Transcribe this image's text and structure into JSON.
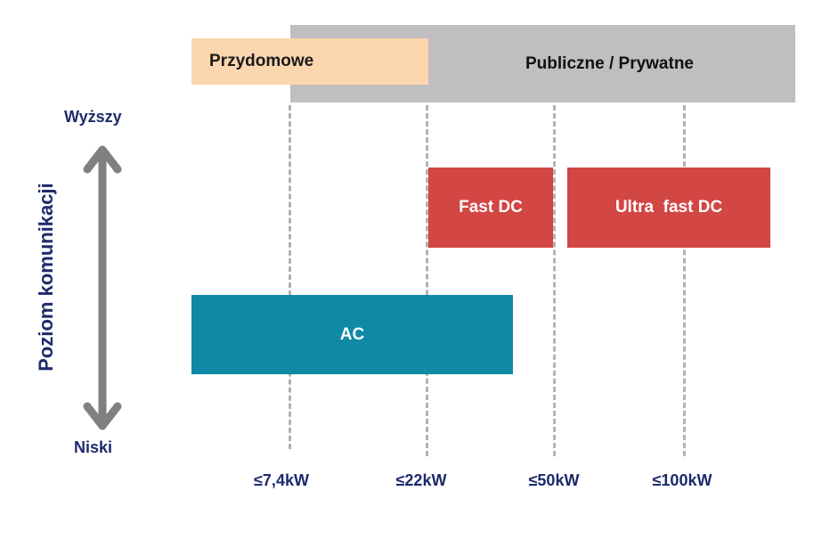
{
  "bands": {
    "home": "Przydomowe",
    "public": "Publiczne / Prywatne"
  },
  "blocks": {
    "fast_dc": "Fast DC",
    "ultra_fast_dc": "Ultra  fast DC",
    "ac": "AC"
  },
  "power_levels": [
    "≤7,4kW",
    "≤22kW",
    "≤50kW",
    "≤100kW"
  ],
  "axis": {
    "label": "Poziom komunikacji",
    "high": "Wyższy",
    "low": "Niski"
  },
  "colors": {
    "public_band": "#c0bec1",
    "home_band": "#fbd6ae",
    "dc": "#d24643",
    "ac": "#0f89a6",
    "text_dark_blue": "#1d2a6c",
    "arrow": "#808080",
    "dashed_line": "#b3b3b3"
  }
}
